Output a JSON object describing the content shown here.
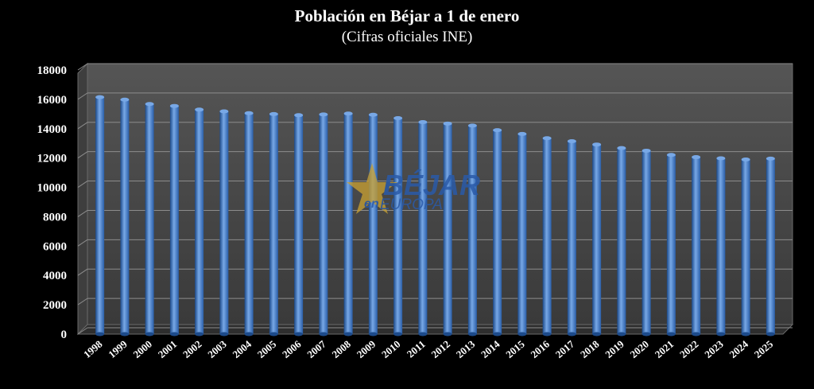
{
  "chart_data": {
    "type": "bar",
    "title": "Población en Béjar a 1 de enero",
    "subtitle": "(Cifras oficiales INE)",
    "xlabel": "",
    "ylabel": "",
    "ylim": [
      0,
      18000
    ],
    "yticks": [
      0,
      2000,
      4000,
      6000,
      8000,
      10000,
      12000,
      14000,
      16000,
      18000
    ],
    "grid": true,
    "categories": [
      "1998",
      "1999",
      "2000",
      "2001",
      "2002",
      "2003",
      "2004",
      "2005",
      "2006",
      "2007",
      "2008",
      "2009",
      "2010",
      "2011",
      "2012",
      "2013",
      "2014",
      "2015",
      "2016",
      "2017",
      "2018",
      "2019",
      "2020",
      "2021",
      "2022",
      "2023",
      "2024",
      "2025"
    ],
    "values": [
      16150,
      15980,
      15680,
      15550,
      15300,
      15180,
      15060,
      15000,
      14920,
      14970,
      15030,
      14950,
      14720,
      14450,
      14350,
      14210,
      13900,
      13640,
      13350,
      13150,
      12920,
      12680,
      12500,
      12210,
      12060,
      11980,
      11900,
      11960
    ],
    "colors": {
      "bar": "#3c78c8",
      "bar_dark": "#1c4a8a",
      "bar_light": "#78a8e6",
      "plot_back": "#4a4a4a",
      "grid": "#8c8c8c"
    }
  },
  "watermark": {
    "text_main": "BÉJAR",
    "text_en": "en",
    "text_sub": "EUROPA"
  }
}
